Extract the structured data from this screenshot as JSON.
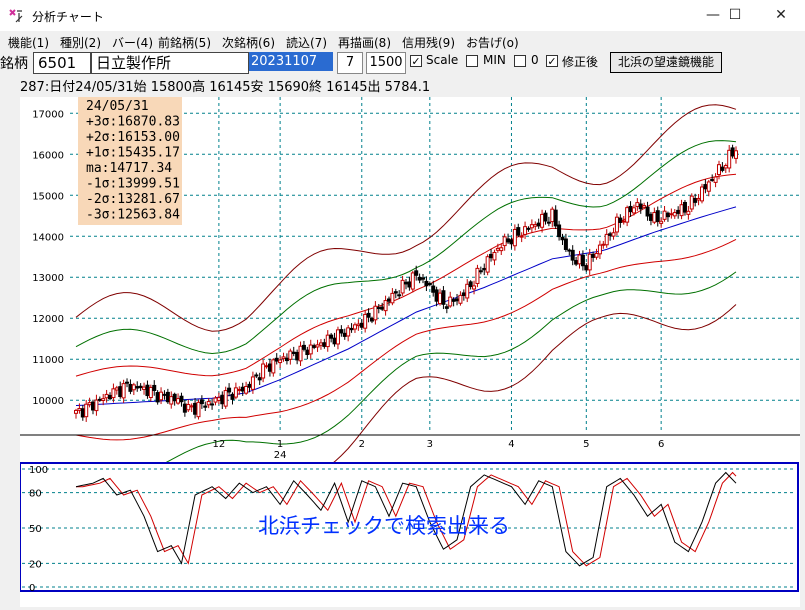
{
  "window": {
    "title": "分析チャート",
    "minimize_glyph": "—",
    "maximize_glyph": "☐",
    "close_glyph": "✕"
  },
  "menu": [
    "機能(1)",
    "種別(2)",
    "バー(4)",
    "前銘柄(5)",
    "次銘柄(6)",
    "読込(7)",
    "再描画(8)",
    "信用残(9)",
    "お告げ(o)"
  ],
  "toolbar": {
    "label": "銘柄",
    "code": "6501",
    "name": "日立製作所",
    "date": "20231107",
    "period": "7",
    "count": "1500",
    "scale_label": "Scale",
    "scale_checked": true,
    "min_label": "MIN",
    "min_checked": false,
    "zero_label": "0",
    "zero_checked": false,
    "adjusted_label": "修正後",
    "adjusted_checked": true,
    "button_label": "北浜の望遠鏡機能"
  },
  "info_line": "287:日付24/05/31始 15800高 16145安 15690終 16145出 5784.1",
  "stats": {
    "date": "24/05/31",
    "rows": [
      "+3σ:16870.83",
      "+2σ:16153.00",
      "+1σ:15435.17",
      "ma:14717.34",
      "-1σ:13999.51",
      "-2σ:13281.67",
      "-3σ:12563.84"
    ]
  },
  "sub_chart_label": "北浜チェックで検索出来る",
  "colors": {
    "up_candle": "#c00000",
    "down_candle": "#000000",
    "ma": "#0000c8",
    "sigma1": "#d00000",
    "sigma2": "#007000",
    "sigma3": "#800000",
    "grid": "#00808c",
    "stats_bg": "#f8d8b8",
    "sub_border": "#0000c0",
    "stoch_k": "#000000",
    "stoch_d": "#d00000"
  },
  "chart_data": {
    "type": "candlestick",
    "y_ticks": [
      10000,
      11000,
      12000,
      13000,
      14000,
      15000,
      16000,
      17000
    ],
    "x_ticks": [
      {
        "label": "12",
        "sub": ""
      },
      {
        "label": "1",
        "sub": "24"
      },
      {
        "label": "2",
        "sub": ""
      },
      {
        "label": "3",
        "sub": ""
      },
      {
        "label": "4",
        "sub": ""
      },
      {
        "label": "5",
        "sub": ""
      },
      {
        "label": "6",
        "sub": ""
      }
    ],
    "ylim": [
      9200,
      17300
    ],
    "sub_y_ticks": [
      0,
      20,
      50,
      80,
      100
    ],
    "close_path": [
      [
        0,
        9680
      ],
      [
        5,
        9900
      ],
      [
        10,
        10150
      ],
      [
        15,
        10350
      ],
      [
        20,
        10280
      ],
      [
        25,
        10100
      ],
      [
        30,
        10000
      ],
      [
        33,
        9780
      ],
      [
        40,
        9950
      ],
      [
        45,
        10150
      ],
      [
        50,
        10300
      ],
      [
        55,
        10750
      ],
      [
        60,
        11000
      ],
      [
        65,
        11150
      ],
      [
        70,
        11300
      ],
      [
        75,
        11500
      ],
      [
        80,
        11700
      ],
      [
        85,
        11950
      ],
      [
        90,
        12300
      ],
      [
        95,
        12700
      ],
      [
        100,
        13050
      ],
      [
        103,
        12850
      ],
      [
        108,
        12350
      ],
      [
        112,
        12450
      ],
      [
        116,
        12800
      ],
      [
        120,
        13300
      ],
      [
        125,
        13800
      ],
      [
        130,
        14050
      ],
      [
        135,
        14300
      ],
      [
        140,
        14500
      ],
      [
        143,
        13850
      ],
      [
        146,
        13450
      ],
      [
        150,
        13300
      ],
      [
        155,
        13850
      ],
      [
        160,
        14400
      ],
      [
        165,
        14800
      ],
      [
        170,
        14400
      ],
      [
        175,
        14550
      ],
      [
        180,
        14700
      ],
      [
        185,
        15200
      ],
      [
        190,
        15700
      ],
      [
        194,
        16145
      ]
    ],
    "ma": [
      [
        0,
        9870
      ],
      [
        20,
        9960
      ],
      [
        40,
        10050
      ],
      [
        50,
        10180
      ],
      [
        60,
        10500
      ],
      [
        80,
        11250
      ],
      [
        100,
        12150
      ],
      [
        110,
        12450
      ],
      [
        120,
        12750
      ],
      [
        140,
        13450
      ],
      [
        155,
        13650
      ],
      [
        170,
        14100
      ],
      [
        185,
        14500
      ],
      [
        194,
        14717
      ]
    ],
    "sigma": {
      "+1": 718,
      "+2": 1436,
      "+3": 2154,
      "-1": -718,
      "-2": -1436,
      "-3": -2154
    },
    "candles_total": 195,
    "stoch_k_path": [
      [
        0,
        85
      ],
      [
        5,
        88
      ],
      [
        8,
        92
      ],
      [
        12,
        78
      ],
      [
        16,
        82
      ],
      [
        20,
        60
      ],
      [
        24,
        30
      ],
      [
        28,
        35
      ],
      [
        31,
        20
      ],
      [
        35,
        78
      ],
      [
        40,
        85
      ],
      [
        44,
        75
      ],
      [
        48,
        88
      ],
      [
        52,
        80
      ],
      [
        56,
        85
      ],
      [
        60,
        70
      ],
      [
        64,
        90
      ],
      [
        68,
        78
      ],
      [
        72,
        65
      ],
      [
        76,
        88
      ],
      [
        80,
        55
      ],
      [
        84,
        90
      ],
      [
        88,
        85
      ],
      [
        92,
        60
      ],
      [
        96,
        88
      ],
      [
        100,
        85
      ],
      [
        104,
        55
      ],
      [
        108,
        32
      ],
      [
        112,
        40
      ],
      [
        116,
        85
      ],
      [
        120,
        95
      ],
      [
        124,
        90
      ],
      [
        128,
        85
      ],
      [
        132,
        70
      ],
      [
        136,
        90
      ],
      [
        140,
        85
      ],
      [
        144,
        30
      ],
      [
        148,
        18
      ],
      [
        152,
        25
      ],
      [
        156,
        85
      ],
      [
        160,
        92
      ],
      [
        164,
        78
      ],
      [
        168,
        60
      ],
      [
        172,
        70
      ],
      [
        176,
        38
      ],
      [
        180,
        30
      ],
      [
        184,
        55
      ],
      [
        188,
        88
      ],
      [
        191,
        97
      ],
      [
        194,
        88
      ]
    ]
  }
}
